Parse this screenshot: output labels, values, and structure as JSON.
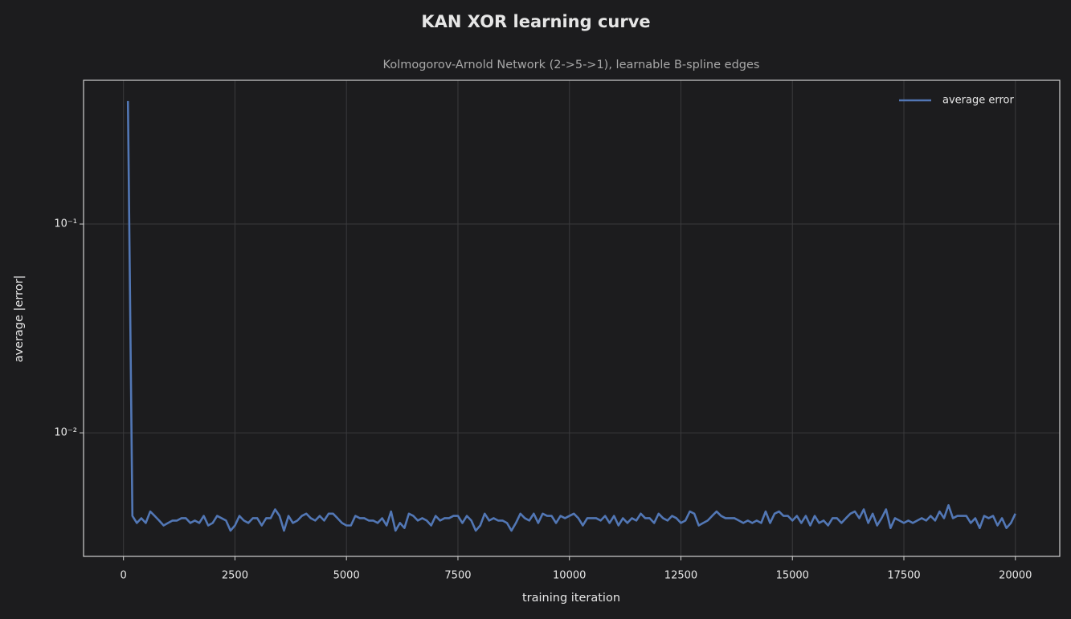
{
  "chart_data": {
    "type": "line",
    "title": "KAN XOR learning curve",
    "subtitle": "Kolmogorov-Arnold Network (2->5->1), learnable B-spline edges",
    "x_label": "training iteration",
    "y_label": "average |error|",
    "yscale": "log",
    "grid": true,
    "legend": "upper right",
    "xlim": [
      -895,
      20995
    ],
    "ylim": [
      0.00256,
      0.488
    ],
    "xticks": [
      0,
      2500,
      5000,
      7500,
      10000,
      12500,
      15000,
      17500,
      20000
    ],
    "yticks": [
      {
        "value": 0.01,
        "label": "10⁻²"
      },
      {
        "value": 0.1,
        "label": "10⁻¹"
      }
    ],
    "x": [
      100,
      200,
      300,
      400,
      500,
      600,
      700,
      800,
      900,
      1000,
      1100,
      1200,
      1300,
      1400,
      1500,
      1600,
      1700,
      1800,
      1900,
      2000,
      2100,
      2200,
      2300,
      2400,
      2500,
      2600,
      2700,
      2800,
      2900,
      3000,
      3100,
      3200,
      3300,
      3400,
      3500,
      3600,
      3700,
      3800,
      3900,
      4000,
      4100,
      4200,
      4300,
      4400,
      4500,
      4600,
      4700,
      4800,
      4900,
      5000,
      5100,
      5200,
      5300,
      5400,
      5500,
      5600,
      5700,
      5800,
      5900,
      6000,
      6100,
      6200,
      6300,
      6400,
      6500,
      6600,
      6700,
      6800,
      6900,
      7000,
      7100,
      7200,
      7300,
      7400,
      7500,
      7600,
      7700,
      7800,
      7900,
      8000,
      8100,
      8200,
      8300,
      8400,
      8500,
      8600,
      8700,
      8800,
      8900,
      9000,
      9100,
      9200,
      9300,
      9400,
      9500,
      9600,
      9700,
      9800,
      9900,
      10000,
      10100,
      10200,
      10300,
      10400,
      10500,
      10600,
      10700,
      10800,
      10900,
      11000,
      11100,
      11200,
      11300,
      11400,
      11500,
      11600,
      11700,
      11800,
      11900,
      12000,
      12100,
      12200,
      12300,
      12400,
      12500,
      12600,
      12700,
      12800,
      12900,
      13000,
      13100,
      13200,
      13300,
      13400,
      13500,
      13600,
      13700,
      13800,
      13900,
      14000,
      14100,
      14200,
      14300,
      14400,
      14500,
      14600,
      14700,
      14800,
      14900,
      15000,
      15100,
      15200,
      15300,
      15400,
      15500,
      15600,
      15700,
      15800,
      15900,
      16000,
      16100,
      16200,
      16300,
      16400,
      16500,
      16600,
      16700,
      16800,
      16900,
      17000,
      17100,
      17200,
      17300,
      17400,
      17500,
      17600,
      17700,
      17800,
      17900,
      18000,
      18100,
      18200,
      18300,
      18400,
      18500,
      18600,
      18700,
      18800,
      18900,
      19000,
      19100,
      19200,
      19300,
      19400,
      19500,
      19600,
      19700,
      19800,
      19900,
      20000
    ],
    "series": [
      {
        "name": "average error",
        "color": "#5277b5",
        "values": [
          0.388,
          0.004,
          0.0037,
          0.0039,
          0.0037,
          0.0042,
          0.004,
          0.0038,
          0.0036,
          0.0037,
          0.0038,
          0.0038,
          0.0039,
          0.0039,
          0.0037,
          0.0038,
          0.0037,
          0.004,
          0.0036,
          0.0037,
          0.004,
          0.0039,
          0.0038,
          0.0034,
          0.0036,
          0.004,
          0.0038,
          0.0037,
          0.0039,
          0.0039,
          0.0036,
          0.0039,
          0.0039,
          0.0043,
          0.004,
          0.0034,
          0.004,
          0.0037,
          0.0038,
          0.004,
          0.0041,
          0.0039,
          0.0038,
          0.004,
          0.0038,
          0.0041,
          0.0041,
          0.0039,
          0.0037,
          0.0036,
          0.0036,
          0.004,
          0.0039,
          0.0039,
          0.0038,
          0.0038,
          0.0037,
          0.0039,
          0.0036,
          0.0042,
          0.0034,
          0.0037,
          0.0035,
          0.0041,
          0.004,
          0.0038,
          0.0039,
          0.0038,
          0.0036,
          0.004,
          0.0038,
          0.0039,
          0.0039,
          0.004,
          0.004,
          0.0037,
          0.004,
          0.0038,
          0.0034,
          0.0036,
          0.0041,
          0.0038,
          0.0039,
          0.0038,
          0.0038,
          0.0037,
          0.0034,
          0.0037,
          0.0041,
          0.0039,
          0.0038,
          0.0041,
          0.0037,
          0.0041,
          0.004,
          0.004,
          0.0037,
          0.004,
          0.0039,
          0.004,
          0.0041,
          0.0039,
          0.0036,
          0.0039,
          0.0039,
          0.0039,
          0.0038,
          0.004,
          0.0037,
          0.004,
          0.0036,
          0.0039,
          0.0037,
          0.0039,
          0.0038,
          0.0041,
          0.0039,
          0.0039,
          0.0037,
          0.0041,
          0.0039,
          0.0038,
          0.004,
          0.0039,
          0.0037,
          0.0038,
          0.0042,
          0.0041,
          0.0036,
          0.0037,
          0.0038,
          0.004,
          0.0042,
          0.004,
          0.0039,
          0.0039,
          0.0039,
          0.0038,
          0.0037,
          0.0038,
          0.0037,
          0.0038,
          0.0037,
          0.0042,
          0.0037,
          0.0041,
          0.0042,
          0.004,
          0.004,
          0.0038,
          0.004,
          0.0037,
          0.004,
          0.0036,
          0.004,
          0.0037,
          0.0038,
          0.0036,
          0.0039,
          0.0039,
          0.0037,
          0.0039,
          0.0041,
          0.0042,
          0.0039,
          0.0043,
          0.0037,
          0.0041,
          0.0036,
          0.0039,
          0.0043,
          0.0035,
          0.0039,
          0.0038,
          0.0037,
          0.0038,
          0.0037,
          0.0038,
          0.0039,
          0.0038,
          0.004,
          0.0038,
          0.0042,
          0.0039,
          0.0045,
          0.0039,
          0.004,
          0.004,
          0.004,
          0.0037,
          0.0039,
          0.0035,
          0.004,
          0.0039,
          0.004,
          0.0036,
          0.0039,
          0.0035,
          0.0037,
          0.0041
        ]
      }
    ]
  }
}
